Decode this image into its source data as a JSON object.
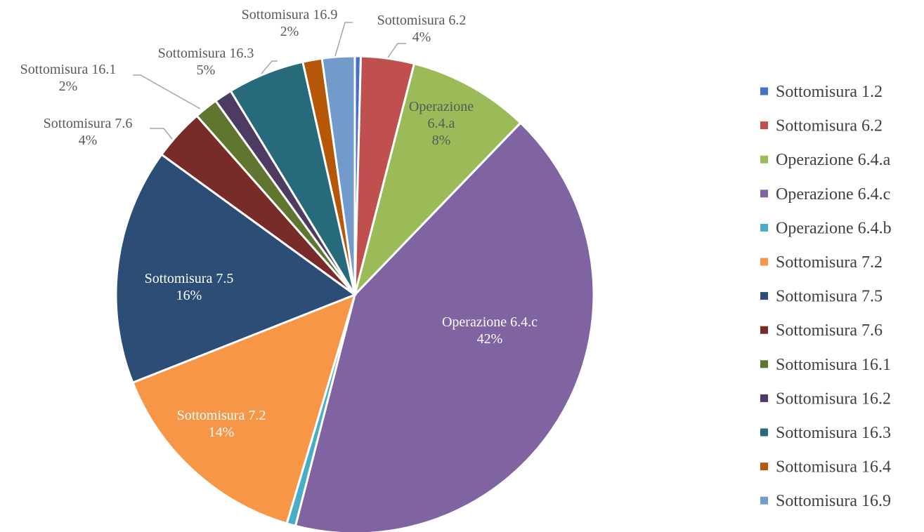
{
  "chart_data": {
    "type": "pie",
    "title": "",
    "slices": [
      {
        "name": "Sottomisura 1.2",
        "value": 0.4,
        "color": "#4472c4"
      },
      {
        "name": "Sottomisura 6.2",
        "value": 3.6,
        "color": "#c0504d",
        "label_lines": [
          "Sottomisura 6.2",
          "4%"
        ]
      },
      {
        "name": "Operazione 6.4.a",
        "value": 8.2,
        "color": "#9bbb59",
        "label_lines": [
          "Operazione",
          "6.4.a",
          "8%"
        ]
      },
      {
        "name": "Operazione 6.4.c",
        "value": 41.8,
        "color": "#8064a2",
        "label_lines": [
          "Operazione 6.4.c",
          "42%"
        ]
      },
      {
        "name": "Operazione 6.4.b",
        "value": 0.6,
        "color": "#4bacc6"
      },
      {
        "name": "Sottomisura 7.2",
        "value": 14.4,
        "color": "#f79646",
        "label_lines": [
          "Sottomisura 7.2",
          "14%"
        ]
      },
      {
        "name": "Sottomisura 7.5",
        "value": 16.0,
        "color": "#2c4d75",
        "label_lines": [
          "Sottomisura 7.5",
          "16%"
        ]
      },
      {
        "name": "Sottomisura 7.6",
        "value": 3.5,
        "color": "#772c2a",
        "label_lines": [
          "Sottomisura 7.6",
          "4%"
        ]
      },
      {
        "name": "Sottomisura 16.1",
        "value": 1.6,
        "color": "#5f7530",
        "label_lines": [
          "Sottomisura 16.1",
          "2%"
        ]
      },
      {
        "name": "Sottomisura 16.2",
        "value": 1.2,
        "color": "#4d3b62"
      },
      {
        "name": "Sottomisura 16.3",
        "value": 5.2,
        "color": "#276a7c",
        "label_lines": [
          "Sottomisura 16.3",
          "5%"
        ]
      },
      {
        "name": "Sottomisura 16.4",
        "value": 1.3,
        "color": "#b65708"
      },
      {
        "name": "Sottomisura 16.9",
        "value": 2.2,
        "color": "#729aca",
        "label_lines": [
          "Sottomisura 16.9",
          "2%"
        ]
      }
    ],
    "legend": {
      "position": "right",
      "entries": [
        "Sottomisura 1.2",
        "Sottomisura 6.2",
        "Operazione 6.4.a",
        "Operazione 6.4.c",
        "Operazione 6.4.b",
        "Sottomisura 7.2",
        "Sottomisura 7.5",
        "Sottomisura 7.6",
        "Sottomisura 16.1",
        "Sottomisura 16.2",
        "Sottomisura 16.3",
        "Sottomisura 16.4",
        "Sottomisura 16.9"
      ]
    }
  }
}
